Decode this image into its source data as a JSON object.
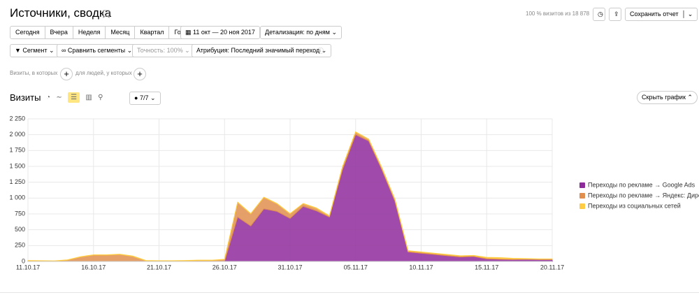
{
  "header": {
    "title": "Источники, сводка",
    "visits_share": "100 % визитов из 18 878",
    "save_button": "Сохранить отчет"
  },
  "toolbar": {
    "periods": [
      "Сегодня",
      "Вчера",
      "Неделя",
      "Месяц",
      "Квартал",
      "Год"
    ],
    "date_range": "11 окт — 20 ноя 2017",
    "detail": "Детализация: по дням",
    "segment": "Сегмент",
    "compare": "Сравнить сегменты",
    "accuracy": "Точность: 100%",
    "attribution": "Атрибуция: Последний значимый переход"
  },
  "filters": {
    "visits_where": "Визиты, в которых",
    "people_where": "для людей, у которых"
  },
  "chart_header": {
    "title": "Визиты",
    "series_count": "7/7",
    "hide_button": "Скрыть график"
  },
  "chart_data": {
    "type": "stacked-area",
    "categories": [
      "11.10.17",
      null,
      null,
      null,
      null,
      "16.10.17",
      null,
      null,
      null,
      null,
      "21.10.17",
      null,
      null,
      null,
      null,
      "26.10.17",
      null,
      null,
      null,
      null,
      "31.10.17",
      null,
      null,
      null,
      null,
      "05.11.17",
      null,
      null,
      null,
      null,
      "10.11.17",
      null,
      null,
      null,
      null,
      "15.11.17",
      null,
      null,
      null,
      null,
      "20.11.17"
    ],
    "series": [
      {
        "name": "Переходы по рекламе → Google Ads",
        "color": "#8f2c9c",
        "values": [
          0,
          0,
          0,
          0,
          0,
          0,
          0,
          0,
          0,
          0,
          0,
          0,
          0,
          0,
          0,
          0,
          700,
          560,
          830,
          790,
          680,
          870,
          800,
          700,
          1450,
          2000,
          1900,
          1450,
          950,
          150,
          130,
          110,
          90,
          70,
          80,
          40,
          35,
          30,
          35,
          30,
          30
        ]
      },
      {
        "name": "Переходы по рекламе → Яндекс: Директ",
        "color": "#e08f4f",
        "values": [
          10,
          8,
          5,
          20,
          70,
          100,
          100,
          110,
          80,
          10,
          8,
          8,
          10,
          15,
          15,
          30,
          230,
          190,
          180,
          120,
          70,
          40,
          40,
          15,
          40,
          40,
          25,
          25,
          25,
          15,
          15,
          15,
          15,
          15,
          10,
          15,
          10,
          10,
          5,
          5,
          5
        ]
      },
      {
        "name": "Переходы из социальных сетей",
        "color": "#ffcc44",
        "values": [
          5,
          5,
          5,
          5,
          5,
          5,
          5,
          5,
          5,
          5,
          5,
          5,
          5,
          5,
          5,
          5,
          5,
          5,
          5,
          5,
          5,
          5,
          5,
          5,
          5,
          5,
          5,
          5,
          5,
          5,
          5,
          5,
          5,
          5,
          5,
          10,
          15,
          10,
          5,
          5,
          5
        ]
      }
    ],
    "ylim": [
      0,
      2250
    ],
    "yticks": [
      0,
      250,
      500,
      750,
      {
        "value": 1000,
        "label": "1 000"
      },
      {
        "value": 1250,
        "label": "1 250"
      },
      {
        "value": 1500,
        "label": "1 500"
      },
      {
        "value": 1750,
        "label": "1 750"
      },
      {
        "value": 2000,
        "label": "2 000"
      },
      {
        "value": 2250,
        "label": "2 250"
      }
    ],
    "grid": true,
    "legend": "right"
  }
}
